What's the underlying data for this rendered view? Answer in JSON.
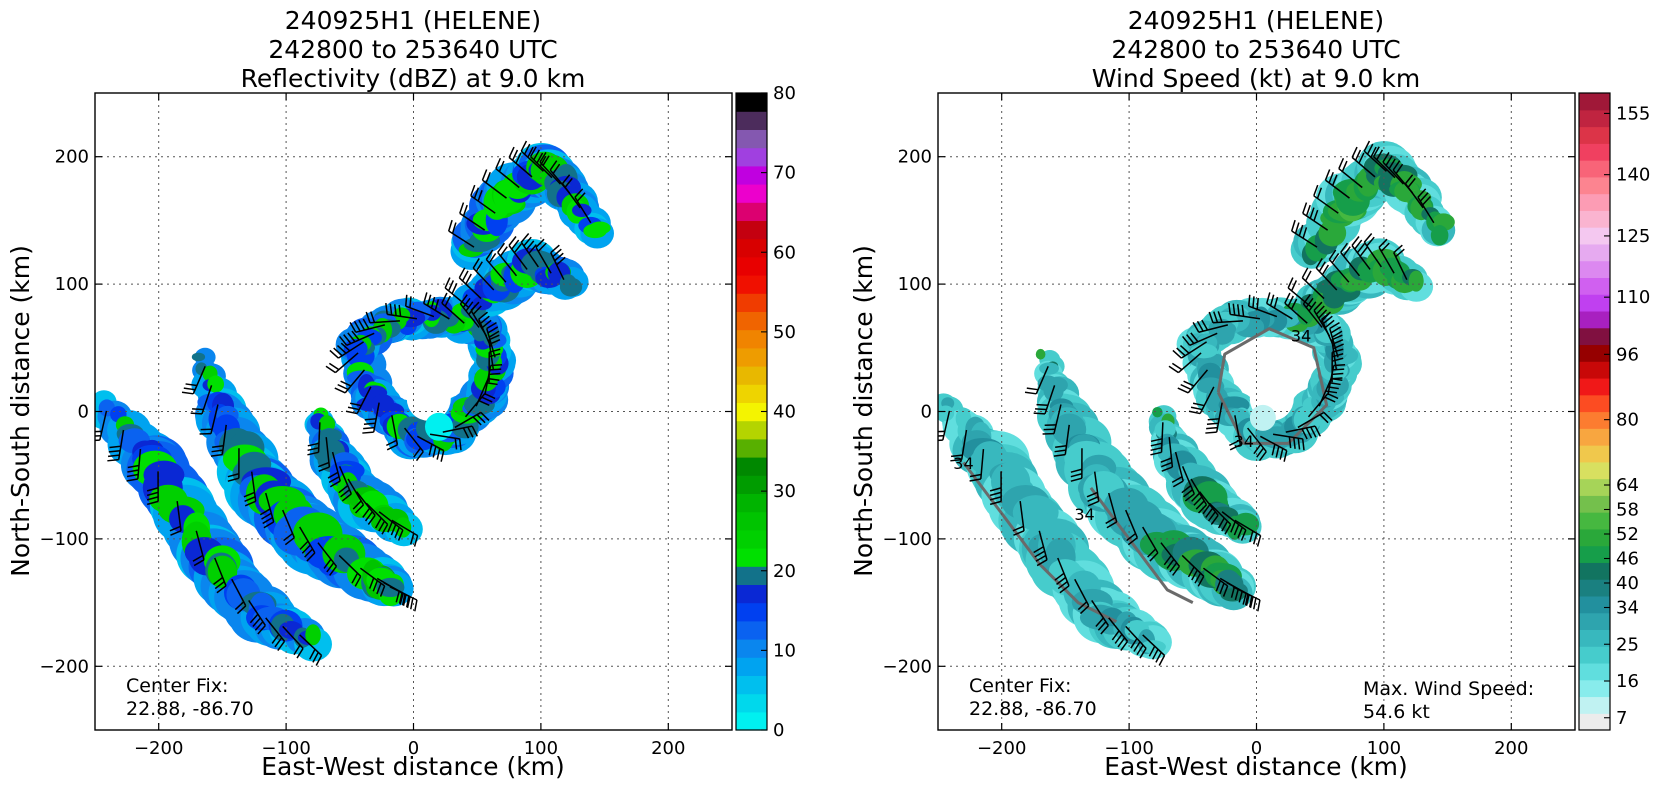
{
  "colors": {
    "reflectivity": [
      "#00f0f0",
      "#00d8ec",
      "#00bfee",
      "#00a3f0",
      "#0a86ee",
      "#0a62f0",
      "#0040f0",
      "#0a28d4",
      "#12728a",
      "#00e000",
      "#00d000",
      "#00c400",
      "#00b400",
      "#009c00",
      "#008800",
      "#58b000",
      "#b4d400",
      "#f4f400",
      "#eed400",
      "#e8b800",
      "#ee9c00",
      "#f08400",
      "#f06400",
      "#f03c00",
      "#f01000",
      "#e80000",
      "#d80000",
      "#c40010",
      "#dc0070",
      "#ec00cc",
      "#c000e0",
      "#a040e0",
      "#8458b0",
      "#4c2c5c",
      "#000000"
    ],
    "wind": [
      "#ececec",
      "#c0f2f2",
      "#88ecec",
      "#60dede",
      "#46cccc",
      "#38b8be",
      "#2ea4ae",
      "#22909e",
      "#1a8080",
      "#127460",
      "#169e4a",
      "#2aa83a",
      "#46b840",
      "#74c04c",
      "#a6d458",
      "#d8e060",
      "#f0c84c",
      "#f8a640",
      "#fc7c30",
      "#fc4c22",
      "#f01818",
      "#c80808",
      "#960000",
      "#801040",
      "#a820c0",
      "#c040f0",
      "#d060f0",
      "#dc88f0",
      "#e6aaf0",
      "#f4c8f0",
      "#fab4d0",
      "#fc9cb4",
      "#fc8490",
      "#f86478",
      "#f04060",
      "#dc3448",
      "#c02440",
      "#a01838"
    ]
  },
  "left": {
    "title_line1": "240925H1 (HELENE)",
    "title_line2": "242800 to 253640 UTC",
    "title_line3": "Reflectivity (dBZ) at 9.0 km",
    "xlabel": "East-West distance (km)",
    "ylabel": "North-South distance (km)",
    "center_fix_label": "Center Fix:",
    "center_fix_value": "22.88, -86.70"
  },
  "right": {
    "title_line1": "240925H1 (HELENE)",
    "title_line2": "242800 to 253640 UTC",
    "title_line3": "Wind Speed (kt) at 9.0 km",
    "xlabel": "East-West distance (km)",
    "ylabel": "North-South distance (km)",
    "center_fix_label": "Center Fix:",
    "center_fix_value": "22.88, -86.70",
    "max_wind_label": "Max. Wind Speed:",
    "max_wind_value": "54.6 kt"
  },
  "chart_data": [
    {
      "type": "heatmap",
      "title": "240925H1 (HELENE) 242800 to 253640 UTC Reflectivity (dBZ) at 9.0 km",
      "xlabel": "East-West distance (km)",
      "ylabel": "North-South distance (km)",
      "xlim": [
        -250,
        250
      ],
      "ylim": [
        -250,
        250
      ],
      "xticks": [
        -200,
        -100,
        0,
        100,
        200
      ],
      "yticks": [
        -200,
        -100,
        0,
        100,
        200
      ],
      "xtick_labels": [
        "−200",
        "−100",
        "0",
        "100",
        "200"
      ],
      "ytick_labels": [
        "−200",
        "−100",
        "0",
        "100",
        "200"
      ],
      "grid": true,
      "colorbar": {
        "label": "Reflectivity (dBZ)",
        "vmin": 0,
        "vmax": 80,
        "ticks": [
          0,
          10,
          20,
          30,
          40,
          50,
          60,
          70,
          80
        ],
        "tick_labels": [
          "0",
          "10",
          "20",
          "30",
          "40",
          "50",
          "60",
          "70",
          "80"
        ]
      },
      "center_fix": [
        22.88,
        -86.7
      ],
      "echo_bands": [
        {
          "region": "northeast rainband",
          "x": [
            40,
            150
          ],
          "y": [
            90,
            200
          ],
          "dBZ": [
            10,
            25
          ]
        },
        {
          "region": "inner core ring",
          "x": [
            -40,
            80
          ],
          "y": [
            -40,
            70
          ],
          "dBZ": [
            5,
            25
          ]
        },
        {
          "region": "southwest rainband",
          "x": [
            -250,
            -80
          ],
          "y": [
            -180,
            50
          ],
          "dBZ": [
            5,
            25
          ]
        },
        {
          "region": "southern rainband",
          "x": [
            -120,
            10
          ],
          "y": [
            -180,
            -10
          ],
          "dBZ": [
            10,
            28
          ]
        }
      ],
      "wind_barbs": true
    },
    {
      "type": "heatmap",
      "title": "240925H1 (HELENE) 242800 to 253640 UTC Wind Speed (kt) at 9.0 km",
      "xlabel": "East-West distance (km)",
      "ylabel": "North-South distance (km)",
      "xlim": [
        -250,
        250
      ],
      "ylim": [
        -250,
        250
      ],
      "xticks": [
        -200,
        -100,
        0,
        100,
        200
      ],
      "yticks": [
        -200,
        -100,
        0,
        100,
        200
      ],
      "xtick_labels": [
        "−200",
        "−100",
        "0",
        "100",
        "200"
      ],
      "ytick_labels": [
        "−200",
        "−100",
        "0",
        "100",
        "200"
      ],
      "grid": true,
      "colorbar": {
        "label": "Wind Speed (kt)",
        "vmin": 4,
        "vmax": 160,
        "ticks": [
          7,
          16,
          25,
          34,
          40,
          46,
          52,
          58,
          64,
          80,
          96,
          110,
          125,
          140,
          155
        ],
        "tick_labels": [
          "7",
          "16",
          "25",
          "34",
          "40",
          "46",
          "52",
          "58",
          "64",
          "80",
          "96",
          "110",
          "125",
          "140",
          "155"
        ]
      },
      "contour_levels": [
        34
      ],
      "contour_labels": [
        "34"
      ],
      "center_fix": [
        22.88,
        -86.7
      ],
      "max_wind_speed_kt": 54.6,
      "wind_regions": [
        {
          "region": "northeast rainband",
          "x": [
            45,
            125
          ],
          "y": [
            90,
            180
          ],
          "kt": [
            36,
            54
          ]
        },
        {
          "region": "inner core ring",
          "x": [
            -50,
            75
          ],
          "y": [
            -40,
            80
          ],
          "kt": [
            18,
            34
          ]
        },
        {
          "region": "southwest rainband",
          "x": [
            -250,
            -100
          ],
          "y": [
            -160,
            10
          ],
          "kt": [
            16,
            34
          ]
        },
        {
          "region": "southern rainband",
          "x": [
            -120,
            -20
          ],
          "y": [
            -180,
            -30
          ],
          "kt": [
            30,
            52
          ]
        }
      ],
      "wind_barbs": true
    }
  ]
}
